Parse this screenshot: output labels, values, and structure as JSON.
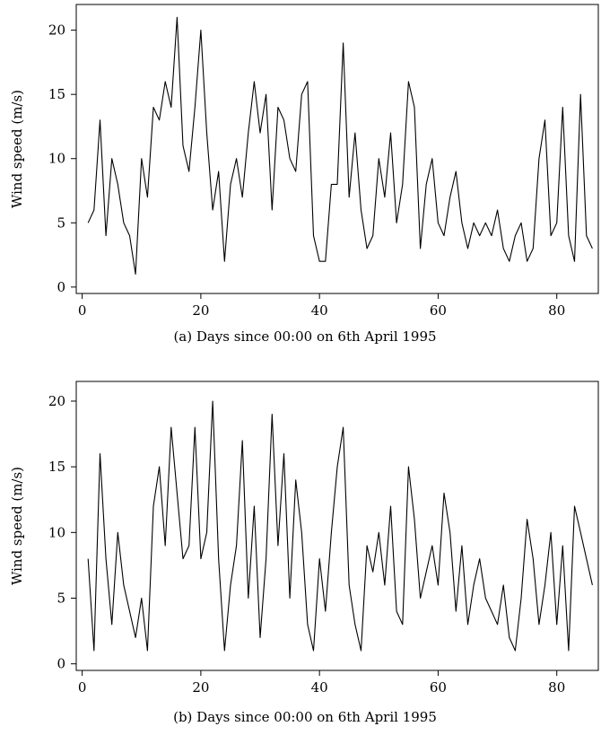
{
  "chart_data": [
    {
      "type": "line",
      "caption": "(a)  Days since 00:00 on 6th April 1995",
      "ylabel": "Wind speed (m/s)",
      "xlim": [
        -1,
        87
      ],
      "ylim": [
        -0.5,
        22
      ],
      "xticks": [
        0,
        20,
        40,
        60,
        80
      ],
      "yticks": [
        0,
        5,
        10,
        15,
        20
      ],
      "grid": false,
      "legend": "none",
      "line_color": "#000000",
      "series": [
        {
          "x": [
            1,
            2,
            3,
            4,
            5,
            6,
            7,
            8,
            9,
            10,
            11,
            12,
            13,
            14,
            15,
            16,
            17,
            18,
            19,
            20,
            21,
            22,
            23,
            24,
            25,
            26,
            27,
            28,
            29,
            30,
            31,
            32,
            33,
            34,
            35,
            36,
            37,
            38,
            39,
            40,
            41,
            42,
            43,
            44,
            45,
            46,
            47,
            48,
            49,
            50,
            51,
            52,
            53,
            54,
            55,
            56,
            57,
            58,
            59,
            60,
            61,
            62,
            63,
            64,
            65,
            66,
            67,
            68,
            69,
            70,
            71,
            72,
            73,
            74,
            75,
            76,
            77,
            78,
            79,
            80,
            81,
            82,
            83,
            84,
            85,
            86
          ],
          "y": [
            5,
            6,
            13,
            4,
            10,
            8,
            5,
            4,
            1,
            10,
            7,
            14,
            13,
            16,
            14,
            21,
            11,
            9,
            14,
            20,
            12,
            6,
            9,
            2,
            8,
            10,
            7,
            12,
            16,
            12,
            15,
            6,
            14,
            13,
            10,
            9,
            15,
            16,
            4,
            2,
            2,
            8,
            8,
            19,
            7,
            12,
            6,
            3,
            4,
            10,
            7,
            12,
            5,
            8,
            16,
            14,
            3,
            8,
            10,
            5,
            4,
            7,
            9,
            5,
            3,
            5,
            4,
            5,
            4,
            6,
            3,
            2,
            4,
            5,
            2,
            3,
            10,
            13,
            4,
            5,
            14,
            4,
            2,
            15,
            4,
            3
          ]
        }
      ]
    },
    {
      "type": "line",
      "caption": "(b)  Days since 00:00 on 6th April 1995",
      "ylabel": "Wind speed (m/s)",
      "xlim": [
        -1,
        87
      ],
      "ylim": [
        -0.5,
        21.5
      ],
      "xticks": [
        0,
        20,
        40,
        60,
        80
      ],
      "yticks": [
        0,
        5,
        10,
        15,
        20
      ],
      "grid": false,
      "legend": "none",
      "line_color": "#000000",
      "series": [
        {
          "x": [
            1,
            2,
            3,
            4,
            5,
            6,
            7,
            8,
            9,
            10,
            11,
            12,
            13,
            14,
            15,
            16,
            17,
            18,
            19,
            20,
            21,
            22,
            23,
            24,
            25,
            26,
            27,
            28,
            29,
            30,
            31,
            32,
            33,
            34,
            35,
            36,
            37,
            38,
            39,
            40,
            41,
            42,
            43,
            44,
            45,
            46,
            47,
            48,
            49,
            50,
            51,
            52,
            53,
            54,
            55,
            56,
            57,
            58,
            59,
            60,
            61,
            62,
            63,
            64,
            65,
            66,
            67,
            68,
            69,
            70,
            71,
            72,
            73,
            74,
            75,
            76,
            77,
            78,
            79,
            80,
            81,
            82,
            83,
            84,
            85,
            86
          ],
          "y": [
            8,
            1,
            16,
            8,
            3,
            10,
            6,
            4,
            2,
            5,
            1,
            12,
            15,
            9,
            18,
            13,
            8,
            9,
            18,
            8,
            10,
            20,
            8,
            1,
            6,
            9,
            17,
            5,
            12,
            2,
            8,
            19,
            9,
            16,
            5,
            14,
            10,
            3,
            1,
            8,
            4,
            10,
            15,
            18,
            6,
            3,
            1,
            9,
            7,
            10,
            6,
            12,
            4,
            3,
            15,
            11,
            5,
            7,
            9,
            6,
            13,
            10,
            4,
            9,
            3,
            6,
            8,
            5,
            4,
            3,
            6,
            2,
            1,
            5,
            11,
            8,
            3,
            6,
            10,
            3,
            9,
            1,
            12,
            10,
            8,
            6
          ]
        }
      ]
    }
  ]
}
